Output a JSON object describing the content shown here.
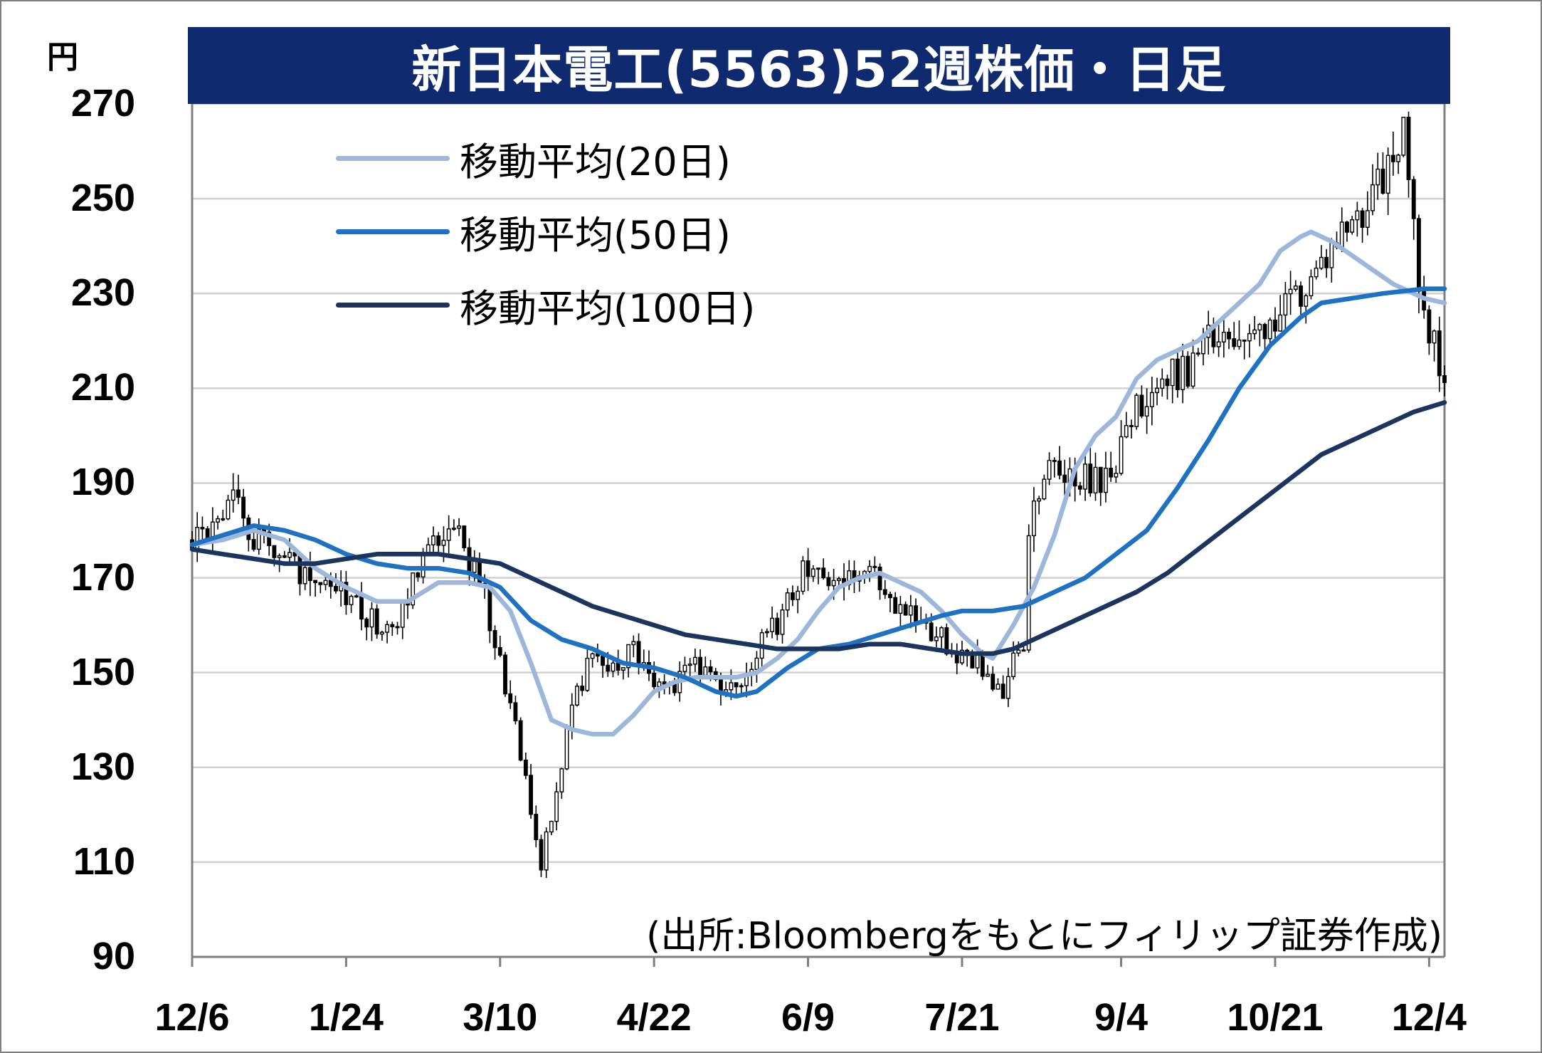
{
  "chart_data": {
    "type": "candlestick",
    "title": "新日本電工(5563)52週株価・日足",
    "unit_label": "円",
    "yticks": [
      270,
      250,
      230,
      210,
      190,
      170,
      150,
      130,
      110,
      90
    ],
    "ylim": [
      90,
      270
    ],
    "xticks": [
      "12/6",
      "1/24",
      "3/10",
      "4/22",
      "6/9",
      "7/21",
      "9/4",
      "10/21",
      "12/4"
    ],
    "x_range_trading_days": [
      0,
      244
    ],
    "xtick_positions_trading_days": [
      0,
      30,
      60,
      90,
      120,
      150,
      181,
      211,
      241
    ],
    "grid": true,
    "legend_position": "top-left",
    "source": "(出所:Bloombergをもとにフィリップ証券作成)",
    "price_anchors": [
      [
        0,
        178
      ],
      [
        6,
        181
      ],
      [
        8,
        186
      ],
      [
        12,
        178
      ],
      [
        18,
        174
      ],
      [
        24,
        167
      ],
      [
        30,
        167
      ],
      [
        36,
        160
      ],
      [
        40,
        160
      ],
      [
        44,
        172
      ],
      [
        48,
        179
      ],
      [
        52,
        178
      ],
      [
        56,
        170
      ],
      [
        60,
        152
      ],
      [
        64,
        133
      ],
      [
        66,
        120
      ],
      [
        68,
        110
      ],
      [
        71,
        125
      ],
      [
        74,
        144
      ],
      [
        78,
        153
      ],
      [
        82,
        150
      ],
      [
        86,
        156
      ],
      [
        90,
        147
      ],
      [
        94,
        147
      ],
      [
        98,
        153
      ],
      [
        102,
        146
      ],
      [
        106,
        148
      ],
      [
        110,
        155
      ],
      [
        114,
        160
      ],
      [
        118,
        170
      ],
      [
        121,
        174
      ],
      [
        126,
        167
      ],
      [
        131,
        172
      ],
      [
        136,
        166
      ],
      [
        140,
        163
      ],
      [
        144,
        159
      ],
      [
        148,
        155
      ],
      [
        152,
        153
      ],
      [
        155,
        150
      ],
      [
        158,
        146
      ],
      [
        160,
        152
      ],
      [
        162,
        155
      ],
      [
        163,
        179
      ],
      [
        164,
        188
      ],
      [
        168,
        193
      ],
      [
        172,
        192
      ],
      [
        176,
        190
      ],
      [
        180,
        195
      ],
      [
        183,
        203
      ],
      [
        186,
        209
      ],
      [
        190,
        212
      ],
      [
        194,
        214
      ],
      [
        198,
        220
      ],
      [
        202,
        219
      ],
      [
        206,
        218
      ],
      [
        210,
        225
      ],
      [
        214,
        229
      ],
      [
        218,
        233
      ],
      [
        222,
        240
      ],
      [
        226,
        246
      ],
      [
        230,
        250
      ],
      [
        233,
        256
      ],
      [
        236,
        264
      ],
      [
        238,
        243
      ],
      [
        240,
        225
      ],
      [
        242,
        220
      ],
      [
        244,
        212
      ],
      [
        246,
        222
      ],
      [
        248,
        228
      ],
      [
        250,
        228
      ],
      [
        252,
        232
      ],
      [
        254,
        230
      ],
      [
        256,
        236
      ]
    ],
    "series": [
      {
        "name": "移動平均(20日)",
        "color": "#9cb7da",
        "points": [
          [
            0,
            177
          ],
          [
            6,
            178
          ],
          [
            12,
            180
          ],
          [
            18,
            178
          ],
          [
            24,
            172
          ],
          [
            30,
            168
          ],
          [
            36,
            165
          ],
          [
            42,
            165
          ],
          [
            48,
            169
          ],
          [
            54,
            169
          ],
          [
            58,
            168
          ],
          [
            62,
            163
          ],
          [
            66,
            152
          ],
          [
            70,
            140
          ],
          [
            74,
            138
          ],
          [
            78,
            137
          ],
          [
            82,
            137
          ],
          [
            86,
            141
          ],
          [
            90,
            146
          ],
          [
            94,
            148
          ],
          [
            98,
            149
          ],
          [
            102,
            149
          ],
          [
            106,
            149
          ],
          [
            110,
            150
          ],
          [
            114,
            153
          ],
          [
            118,
            157
          ],
          [
            122,
            163
          ],
          [
            126,
            168
          ],
          [
            130,
            170
          ],
          [
            134,
            171
          ],
          [
            138,
            169
          ],
          [
            142,
            167
          ],
          [
            146,
            163
          ],
          [
            150,
            158
          ],
          [
            154,
            154
          ],
          [
            156,
            153
          ],
          [
            160,
            160
          ],
          [
            164,
            168
          ],
          [
            168,
            179
          ],
          [
            172,
            193
          ],
          [
            176,
            200
          ],
          [
            180,
            204
          ],
          [
            184,
            212
          ],
          [
            188,
            216
          ],
          [
            192,
            218
          ],
          [
            196,
            220
          ],
          [
            200,
            224
          ],
          [
            204,
            228
          ],
          [
            208,
            232
          ],
          [
            212,
            239
          ],
          [
            216,
            242
          ],
          [
            218,
            243
          ],
          [
            222,
            241
          ],
          [
            226,
            238
          ],
          [
            230,
            235
          ],
          [
            234,
            232
          ],
          [
            238,
            230
          ],
          [
            240,
            229
          ],
          [
            244,
            228
          ]
        ]
      },
      {
        "name": "移動平均(50日)",
        "color": "#1f72c1",
        "points": [
          [
            0,
            177
          ],
          [
            6,
            179
          ],
          [
            12,
            181
          ],
          [
            18,
            180
          ],
          [
            24,
            178
          ],
          [
            30,
            175
          ],
          [
            36,
            173
          ],
          [
            42,
            172
          ],
          [
            48,
            172
          ],
          [
            54,
            171
          ],
          [
            60,
            168
          ],
          [
            66,
            161
          ],
          [
            72,
            157
          ],
          [
            78,
            155
          ],
          [
            84,
            152
          ],
          [
            90,
            151
          ],
          [
            96,
            149
          ],
          [
            102,
            146
          ],
          [
            106,
            145
          ],
          [
            110,
            146
          ],
          [
            116,
            151
          ],
          [
            122,
            155
          ],
          [
            128,
            156
          ],
          [
            134,
            158
          ],
          [
            140,
            160
          ],
          [
            146,
            162
          ],
          [
            150,
            163
          ],
          [
            156,
            163
          ],
          [
            162,
            164
          ],
          [
            168,
            167
          ],
          [
            174,
            170
          ],
          [
            180,
            175
          ],
          [
            186,
            180
          ],
          [
            192,
            189
          ],
          [
            198,
            199
          ],
          [
            204,
            210
          ],
          [
            210,
            219
          ],
          [
            216,
            225
          ],
          [
            220,
            228
          ],
          [
            226,
            229
          ],
          [
            232,
            230
          ],
          [
            240,
            231
          ],
          [
            244,
            231
          ]
        ]
      },
      {
        "name": "移動平均(100日)",
        "color": "#1c355e",
        "points": [
          [
            0,
            176
          ],
          [
            6,
            175
          ],
          [
            12,
            174
          ],
          [
            18,
            173
          ],
          [
            24,
            173
          ],
          [
            30,
            174
          ],
          [
            36,
            175
          ],
          [
            42,
            175
          ],
          [
            48,
            175
          ],
          [
            54,
            174
          ],
          [
            60,
            173
          ],
          [
            66,
            170
          ],
          [
            72,
            167
          ],
          [
            78,
            164
          ],
          [
            84,
            162
          ],
          [
            90,
            160
          ],
          [
            96,
            158
          ],
          [
            102,
            157
          ],
          [
            108,
            156
          ],
          [
            114,
            155
          ],
          [
            120,
            155
          ],
          [
            126,
            155
          ],
          [
            132,
            156
          ],
          [
            138,
            156
          ],
          [
            144,
            155
          ],
          [
            150,
            154
          ],
          [
            156,
            154
          ],
          [
            160,
            155
          ],
          [
            166,
            158
          ],
          [
            172,
            161
          ],
          [
            178,
            164
          ],
          [
            184,
            167
          ],
          [
            190,
            171
          ],
          [
            196,
            176
          ],
          [
            202,
            181
          ],
          [
            208,
            186
          ],
          [
            214,
            191
          ],
          [
            220,
            196
          ],
          [
            226,
            199
          ],
          [
            232,
            202
          ],
          [
            238,
            205
          ],
          [
            244,
            207
          ]
        ]
      }
    ]
  }
}
